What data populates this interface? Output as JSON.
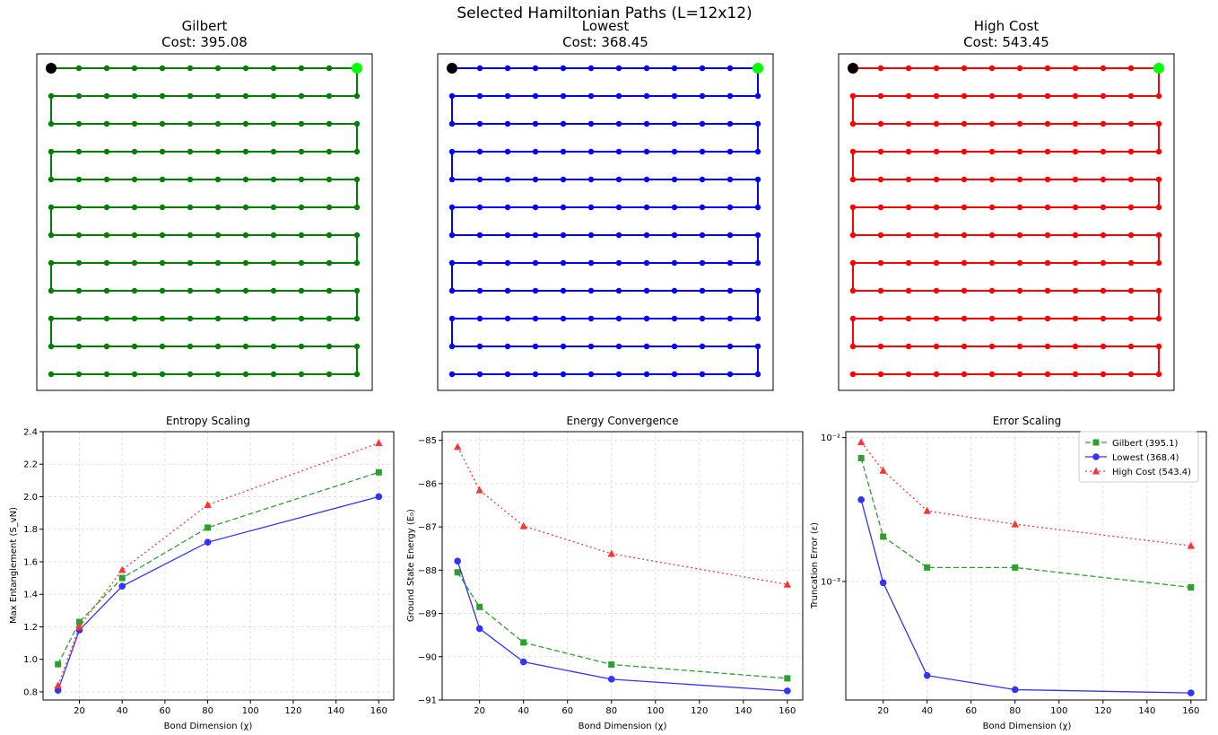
{
  "figure": {
    "suptitle": "Selected Hamiltonian Paths (L=12x12)"
  },
  "colors": {
    "gilbert": "#008000",
    "lowest": "#0000ff",
    "high_cost": "#ff0000",
    "start_marker": "#000000",
    "end_marker": "#00ff00",
    "grid": "#e0e0e0"
  },
  "chart_data": [
    {
      "type": "path-grid",
      "title_line1": "Gilbert",
      "title_line2": "Cost: 395.08",
      "grid_size": [
        12,
        12
      ],
      "color": "#008000",
      "start": [
        0,
        11
      ],
      "end": [
        11,
        11
      ]
    },
    {
      "type": "path-grid",
      "title_line1": "Lowest",
      "title_line2": "Cost: 368.45",
      "grid_size": [
        12,
        12
      ],
      "color": "#0000ff",
      "start": [
        0,
        11
      ],
      "end": [
        11,
        11
      ]
    },
    {
      "type": "path-grid",
      "title_line1": "High Cost",
      "title_line2": "Cost: 543.45",
      "grid_size": [
        12,
        12
      ],
      "color": "#ff0000",
      "start": [
        0,
        11
      ],
      "end": [
        11,
        11
      ]
    },
    {
      "type": "line",
      "title": "Entropy Scaling",
      "xlabel": "Bond Dimension (χ)",
      "ylabel": "Max Entanglement (S_vN)",
      "xlim": [
        3,
        167
      ],
      "ylim": [
        0.75,
        2.4
      ],
      "yscale": "linear",
      "x_ticks": [
        20,
        40,
        60,
        80,
        100,
        120,
        140,
        160
      ],
      "y_ticks": [
        0.8,
        1.0,
        1.2,
        1.4,
        1.6,
        1.8,
        2.0,
        2.2,
        2.4
      ],
      "y_tick_labels": [
        "0.8",
        "1.0",
        "1.2",
        "1.4",
        "1.6",
        "1.8",
        "2.0",
        "2.2",
        "2.4"
      ],
      "x": [
        10,
        20,
        40,
        80,
        160
      ],
      "grid": true,
      "series": [
        {
          "key": "gilbert",
          "values": [
            0.97,
            1.23,
            1.5,
            1.81,
            2.15
          ]
        },
        {
          "key": "lowest",
          "values": [
            0.81,
            1.18,
            1.45,
            1.72,
            2.0
          ]
        },
        {
          "key": "high",
          "values": [
            0.84,
            1.2,
            1.55,
            1.95,
            2.33
          ]
        }
      ]
    },
    {
      "type": "line",
      "title": "Energy Convergence",
      "xlabel": "Bond Dimension (χ)",
      "ylabel": "Ground State Energy (E₀)",
      "xlim": [
        3,
        167
      ],
      "ylim": [
        -91.0,
        -84.8
      ],
      "yscale": "linear",
      "x_ticks": [
        20,
        40,
        60,
        80,
        100,
        120,
        140,
        160
      ],
      "y_ticks": [
        -91,
        -90,
        -89,
        -88,
        -87,
        -86,
        -85
      ],
      "y_tick_labels": [
        "−91",
        "−90",
        "−89",
        "−88",
        "−87",
        "−86",
        "−85"
      ],
      "x": [
        10,
        20,
        40,
        80,
        160
      ],
      "grid": true,
      "series": [
        {
          "key": "gilbert",
          "values": [
            -88.05,
            -88.85,
            -89.67,
            -90.18,
            -90.5
          ]
        },
        {
          "key": "lowest",
          "values": [
            -87.79,
            -89.35,
            -90.12,
            -90.52,
            -90.79
          ]
        },
        {
          "key": "high",
          "values": [
            -85.15,
            -86.15,
            -86.98,
            -87.62,
            -88.33
          ]
        }
      ]
    },
    {
      "type": "line",
      "title": "Error Scaling",
      "xlabel": "Bond Dimension (χ)",
      "ylabel": "Truncation Error (ε)",
      "xlim": [
        3,
        167
      ],
      "ylim": [
        0.00015,
        0.011
      ],
      "yscale": "log",
      "x_ticks": [
        20,
        40,
        60,
        80,
        100,
        120,
        140,
        160
      ],
      "y_ticks": [
        0.001,
        0.01
      ],
      "y_tick_labels": [
        "10⁻³",
        "10⁻²"
      ],
      "x": [
        10,
        20,
        40,
        80,
        160
      ],
      "grid": true,
      "legend": "top-right",
      "series": [
        {
          "key": "gilbert",
          "name": "Gilbert (395.1)",
          "values": [
            0.0072,
            0.00205,
            0.00125,
            0.00125,
            0.00091
          ]
        },
        {
          "key": "lowest",
          "name": "Lowest (368.4)",
          "values": [
            0.0037,
            0.00098,
            0.000222,
            0.000177,
            0.000168
          ]
        },
        {
          "key": "high",
          "name": "High Cost (543.4)",
          "values": [
            0.0093,
            0.0059,
            0.0031,
            0.0025,
            0.00177
          ]
        }
      ]
    }
  ]
}
